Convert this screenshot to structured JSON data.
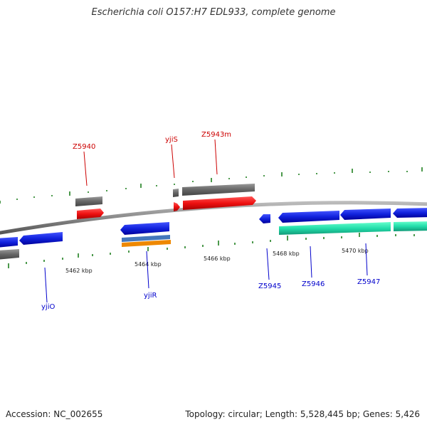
{
  "title": "Escherichia coli O157:H7 EDL933, complete genome",
  "footer": {
    "accession": "Accession: NC_002655",
    "summary": "Topology: circular; Length: 5,528,445 bp; Genes: 5,426"
  },
  "colors": {
    "forward_label": "#cc0000",
    "reverse_label": "#0000cc",
    "cds_forward": "#ee1111",
    "cds_reverse": "#1122dd",
    "gene_bar": "#666666",
    "ncrna": "#22ddaa",
    "trna_blue": "#4477bb",
    "trna_orange": "#ee8800",
    "backbone": "#888888",
    "tick": "#117711"
  },
  "axis_labels": [
    "5462 kbp",
    "5464 kbp",
    "5466 kbp",
    "5468 kbp",
    "5470 kbp"
  ],
  "gene_labels": {
    "forward": [
      "Z5940",
      "yjiS",
      "Z5943m"
    ],
    "reverse": [
      "yjiO",
      "yjiR",
      "Z5945",
      "Z5946",
      "Z5947"
    ]
  }
}
